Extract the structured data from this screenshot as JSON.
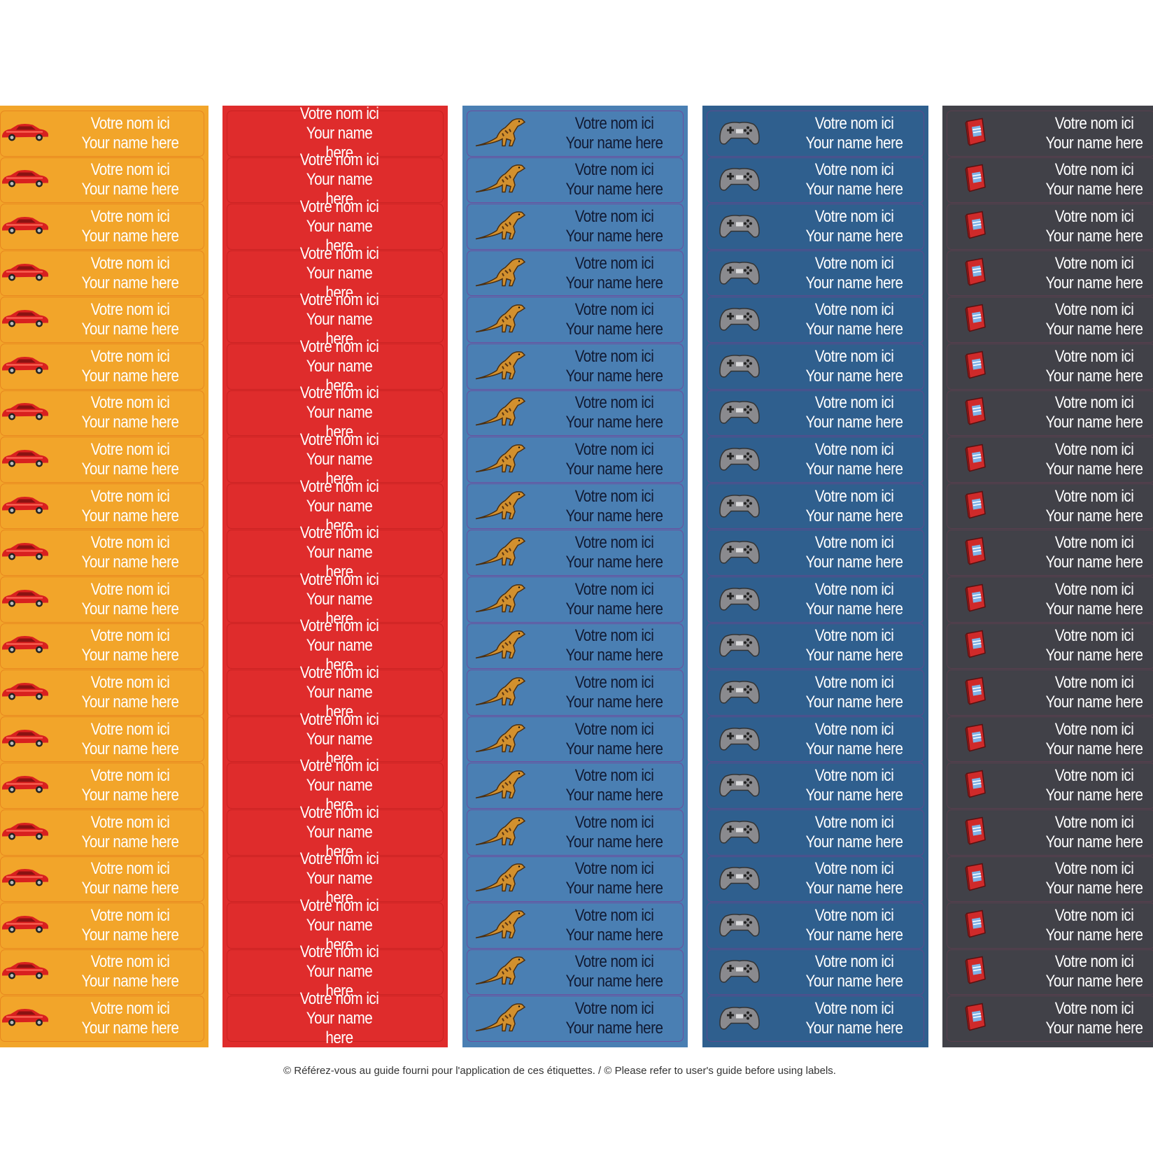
{
  "strips": [
    {
      "id": "car",
      "color": "#f2a52a",
      "border": "#e8871f",
      "text_color": "#ffffff",
      "icon": "red-car-icon",
      "count": 20
    },
    {
      "id": "plain-red",
      "color": "#df2c2c",
      "border": "#c92222",
      "text_color": "#ffffff",
      "icon": "",
      "count": 20
    },
    {
      "id": "dinosaur",
      "color": "#4a7fb3",
      "border": "#6d4d9e",
      "text_color": "#111a33",
      "icon": "t-rex-dinosaur-icon",
      "count": 20
    },
    {
      "id": "gamepad",
      "color": "#2f5f8e",
      "border": "#5b4a8d",
      "text_color": "#ffffff",
      "icon": "game-controller-icon",
      "count": 20
    },
    {
      "id": "book",
      "color": "#414148",
      "border": "#5a3e4e",
      "text_color": "#ffffff",
      "icon": "red-book-icon",
      "count": 20
    }
  ],
  "label_text": {
    "line1": "Votre nom ici",
    "line2": "Your name here"
  },
  "footer": "© Référez-vous au guide fourni pour l'application de ces étiquettes. / © Please refer to user's guide before using labels."
}
